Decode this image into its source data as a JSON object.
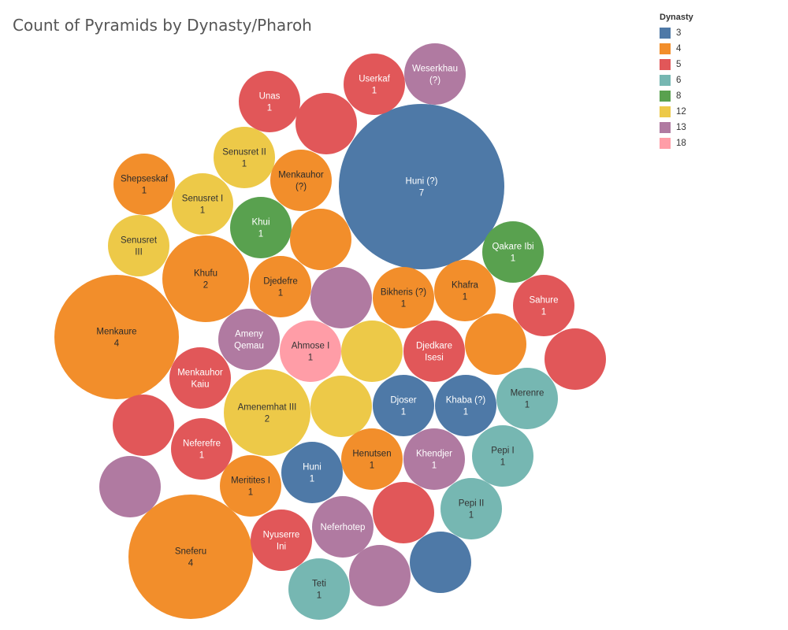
{
  "title": "Count of Pyramids by Dynasty/Pharoh",
  "legend": {
    "title": "Dynasty",
    "items": [
      {
        "label": "3",
        "color": "#4e79a7"
      },
      {
        "label": "4",
        "color": "#f28e2b"
      },
      {
        "label": "5",
        "color": "#e15759"
      },
      {
        "label": "6",
        "color": "#76b7b2"
      },
      {
        "label": "8",
        "color": "#59a14f"
      },
      {
        "label": "12",
        "color": "#edc948"
      },
      {
        "label": "13",
        "color": "#b07aa1"
      },
      {
        "label": "18",
        "color": "#ff9da7"
      }
    ]
  },
  "chart_data": {
    "type": "bubble",
    "measure": "Count of Pyramids",
    "color_by": "Dynasty",
    "bubbles": [
      {
        "pharaoh": "Huni (?)",
        "dynasty": "3",
        "count": 7
      },
      {
        "pharaoh": "Menkaure",
        "dynasty": "4",
        "count": 4
      },
      {
        "pharaoh": "Sneferu",
        "dynasty": "4",
        "count": 4
      },
      {
        "pharaoh": "Khufu",
        "dynasty": "4",
        "count": 2
      },
      {
        "pharaoh": "Amenemhat III",
        "dynasty": "12",
        "count": 2
      },
      {
        "pharaoh": "Userkaf",
        "dynasty": "5",
        "count": 1
      },
      {
        "pharaoh": "Weserkhau",
        "dynasty": "13",
        "count": "(?)"
      },
      {
        "pharaoh": "Unas",
        "dynasty": "5",
        "count": 1
      },
      {
        "pharaoh": "",
        "dynasty": "5",
        "count": null
      },
      {
        "pharaoh": "Senusret II",
        "dynasty": "12",
        "count": 1
      },
      {
        "pharaoh": "Menkauhor",
        "dynasty": "4",
        "count": "(?)"
      },
      {
        "pharaoh": "Shepseskaf",
        "dynasty": "4",
        "count": 1
      },
      {
        "pharaoh": "Senusret I",
        "dynasty": "12",
        "count": 1
      },
      {
        "pharaoh": "Khui",
        "dynasty": "8",
        "count": 1
      },
      {
        "pharaoh": "",
        "dynasty": "4",
        "count": null
      },
      {
        "pharaoh": "Senusret",
        "dynasty": "12",
        "count": "III"
      },
      {
        "pharaoh": "Qakare Ibi",
        "dynasty": "8",
        "count": 1
      },
      {
        "pharaoh": "Djedefre",
        "dynasty": "4",
        "count": 1
      },
      {
        "pharaoh": "",
        "dynasty": "13",
        "count": null
      },
      {
        "pharaoh": "Bikheris (?)",
        "dynasty": "4",
        "count": 1
      },
      {
        "pharaoh": "Khafra",
        "dynasty": "4",
        "count": 1
      },
      {
        "pharaoh": "Sahure",
        "dynasty": "5",
        "count": 1
      },
      {
        "pharaoh": "Ameny Qemau",
        "dynasty": "13",
        "count": null
      },
      {
        "pharaoh": "Ahmose I",
        "dynasty": "18",
        "count": 1
      },
      {
        "pharaoh": "",
        "dynasty": "12",
        "count": null
      },
      {
        "pharaoh": "Djedkare Isesi",
        "dynasty": "5",
        "count": null
      },
      {
        "pharaoh": "",
        "dynasty": "4",
        "count": null
      },
      {
        "pharaoh": "",
        "dynasty": "5",
        "count": null
      },
      {
        "pharaoh": "Menkauhor Kaiu",
        "dynasty": "5",
        "count": null
      },
      {
        "pharaoh": "",
        "dynasty": "12",
        "count": null
      },
      {
        "pharaoh": "Djoser",
        "dynasty": "3",
        "count": 1
      },
      {
        "pharaoh": "Khaba (?)",
        "dynasty": "3",
        "count": 1
      },
      {
        "pharaoh": "Merenre",
        "dynasty": "6",
        "count": 1
      },
      {
        "pharaoh": "",
        "dynasty": "5",
        "count": null
      },
      {
        "pharaoh": "Neferefre",
        "dynasty": "5",
        "count": 1
      },
      {
        "pharaoh": "Henutsen",
        "dynasty": "4",
        "count": 1
      },
      {
        "pharaoh": "Khendjer",
        "dynasty": "13",
        "count": 1
      },
      {
        "pharaoh": "Pepi I",
        "dynasty": "6",
        "count": 1
      },
      {
        "pharaoh": "",
        "dynasty": "13",
        "count": null
      },
      {
        "pharaoh": "Huni",
        "dynasty": "3",
        "count": 1
      },
      {
        "pharaoh": "Meritites I",
        "dynasty": "4",
        "count": 1
      },
      {
        "pharaoh": "Pepi II",
        "dynasty": "6",
        "count": 1
      },
      {
        "pharaoh": "Neferhotep",
        "dynasty": "13",
        "count": null
      },
      {
        "pharaoh": "",
        "dynasty": "5",
        "count": null
      },
      {
        "pharaoh": "Nyuserre Ini",
        "dynasty": "5",
        "count": null
      },
      {
        "pharaoh": "",
        "dynasty": "3",
        "count": null
      },
      {
        "pharaoh": "Teti",
        "dynasty": "6",
        "count": 1
      },
      {
        "pharaoh": "",
        "dynasty": "13",
        "count": null
      }
    ]
  }
}
